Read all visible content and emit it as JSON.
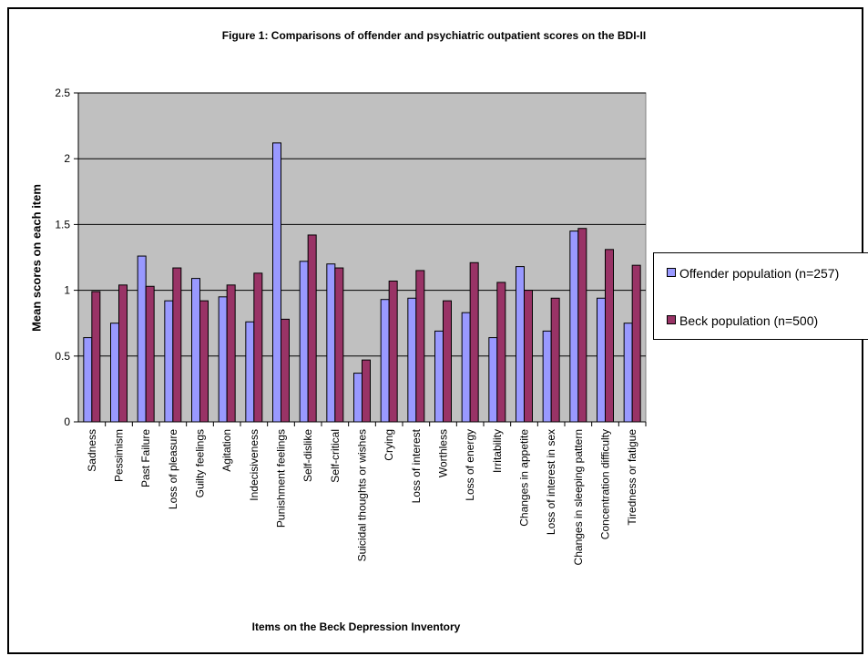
{
  "chart_data": {
    "type": "bar",
    "title": "Figure 1: Comparisons of offender and psychiatric outpatient scores on the BDI-II",
    "xlabel": "Items on the Beck Depression Inventory",
    "ylabel": "Mean scores on each item",
    "ylim": [
      0,
      2.5
    ],
    "yticks": [
      "0",
      "0.5",
      "1",
      "1.5",
      "2",
      "2.5"
    ],
    "grid": true,
    "legend_position": "right",
    "plot_background": "#c0c0c0",
    "categories": [
      "Sadness",
      "Pessimism",
      "Past Failure",
      "Loss of pleasure",
      "Guilty feelings",
      "Agitation",
      "Indecisiveness",
      "Punishment feelings",
      "Self-dislike",
      "Self-critical",
      "Suicidal thoughts or wishes",
      "Crying",
      "Loss of interest",
      "Worthless",
      "Loss of energy",
      "Irritability",
      "Changes in appetite",
      "Loss of interest in sex",
      "Changes in sleeping pattern",
      "Concentration difficulty",
      "Tiredness or fatigue"
    ],
    "series": [
      {
        "name": "Offender population (n=257)",
        "color": "#9999ff",
        "values": [
          0.64,
          0.75,
          1.26,
          0.92,
          1.09,
          0.95,
          0.76,
          2.12,
          1.22,
          1.2,
          0.37,
          0.93,
          0.94,
          0.69,
          0.83,
          0.64,
          1.18,
          0.69,
          1.45,
          0.94,
          0.75
        ]
      },
      {
        "name": "Beck population (n=500)",
        "color": "#993366",
        "values": [
          0.99,
          1.04,
          1.03,
          1.17,
          0.92,
          1.04,
          1.13,
          0.78,
          1.42,
          1.17,
          0.47,
          1.07,
          1.15,
          0.92,
          1.21,
          1.06,
          1.0,
          0.94,
          1.47,
          1.31,
          1.19
        ]
      }
    ]
  }
}
